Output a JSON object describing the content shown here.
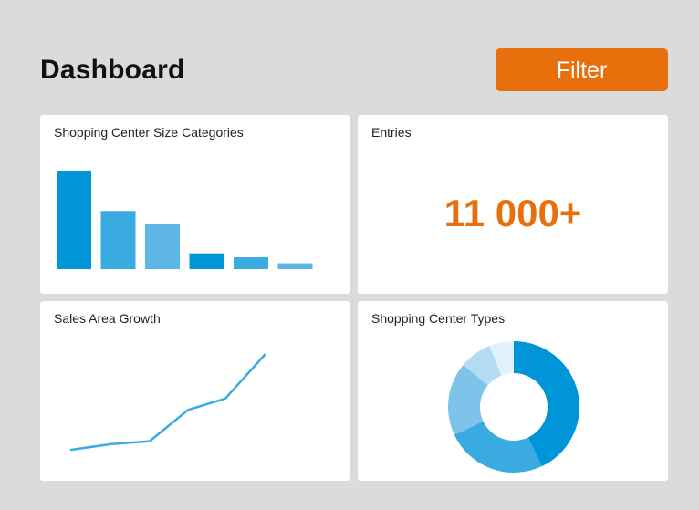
{
  "header": {
    "title": "Dashboard",
    "filter_label": "Filter",
    "accent_color": "#e8700c"
  },
  "cards": {
    "size_categories": {
      "title": "Shopping Center Size Categories"
    },
    "entries": {
      "title": "Entries",
      "value": "11 000+"
    },
    "growth": {
      "title": "Sales Area Growth"
    },
    "types": {
      "title": "Shopping Center Types"
    }
  },
  "chart_data": [
    {
      "type": "bar",
      "categories": [
        "",
        "",
        "",
        "",
        "",
        ""
      ],
      "values": [
        100,
        59,
        46,
        16,
        12,
        6
      ],
      "colors": [
        "#0095d9",
        "#3aabe1",
        "#5db6e5",
        "#0095d9",
        "#3aabe1",
        "#5db6e5"
      ],
      "title": "Shopping Center Size Categories",
      "ylim": [
        0,
        100
      ],
      "grid": false
    },
    {
      "type": "line",
      "x": [
        1,
        2,
        3,
        4,
        5,
        6
      ],
      "values": [
        0,
        6,
        9,
        42,
        54,
        100
      ],
      "color": "#3aabe1",
      "title": "Sales Area Growth",
      "ylim": [
        0,
        100
      ],
      "grid": false
    },
    {
      "type": "pie",
      "donut": true,
      "labels": [
        "",
        "",
        "",
        "",
        ""
      ],
      "values": [
        43,
        25,
        18,
        8,
        6
      ],
      "colors": [
        "#0095d9",
        "#3aabe1",
        "#7dc3ea",
        "#b3dbf3",
        "#e3f1fb"
      ],
      "title": "Shopping Center Types"
    }
  ]
}
